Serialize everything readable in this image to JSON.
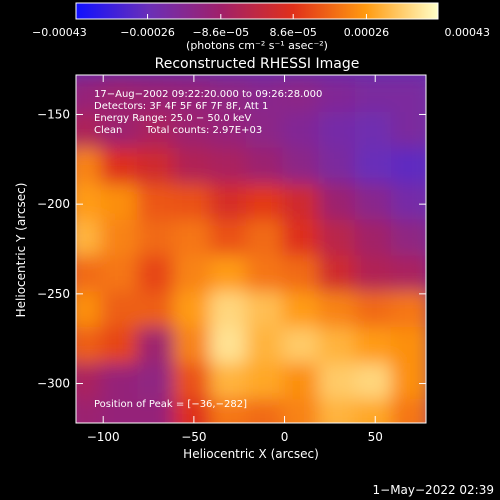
{
  "chart_data": {
    "type": "heatmap",
    "title": "Reconstructed RHESSI Image",
    "xlabel": "Heliocentric X (arcsec)",
    "ylabel": "Heliocentric Y (arcsec)",
    "xlim": [
      -115,
      78
    ],
    "ylim": [
      -322,
      -128
    ],
    "x_ticks": [
      -100,
      -50,
      0,
      50
    ],
    "x_tick_labels": [
      "−100",
      "−50",
      "0",
      "50"
    ],
    "y_ticks": [
      -150,
      -200,
      -250,
      -300
    ],
    "y_tick_labels": [
      "−150",
      "−200",
      "−250",
      "−300"
    ],
    "colorbar": {
      "range": [
        -0.00043,
        0.00043
      ],
      "tick_labels": [
        "−0.00043",
        "−0.00026",
        "−8.6e−05",
        "8.6e−05",
        "0.00026",
        "0.00043"
      ],
      "unit_label": "(photons cm⁻² s⁻¹ asec⁻²)",
      "colors": [
        "#1010ff",
        "#6a2fb8",
        "#a0206a",
        "#e0301a",
        "#ff9a10",
        "#ffffc8"
      ]
    },
    "annotations": {
      "time_range": "17−Aug−2002 09:22:20.000 to 09:26:28.000",
      "detectors": "Detectors: 3F 4F 5F 6F 7F 8F, Att 1",
      "energy": "Energy Range: 25.0 − 50.0 keV",
      "algorithm": "Clean",
      "counts": "Total counts: 2.97E+03",
      "peak": "Position of Peak = [−36,−282]"
    },
    "peak_position": [
      -36,
      -282
    ],
    "grid": false,
    "intensity_grid": {
      "x": [
        -110,
        -90,
        -70,
        -50,
        -30,
        -10,
        10,
        30,
        50,
        70
      ],
      "y": [
        -140,
        -160,
        -180,
        -200,
        -220,
        -240,
        -260,
        -280,
        -300,
        -320
      ],
      "z": [
        [
          -0.00012,
          -0.0001,
          -0.00011,
          -0.00012,
          -0.00014,
          -0.00016,
          -0.00015,
          -0.00018,
          -0.0002,
          -0.0002
        ],
        [
          -5e-05,
          -0.0001,
          -6e-05,
          -0.0001,
          -0.00012,
          -0.00015,
          -0.00018,
          -0.00022,
          -0.00024,
          -0.0002
        ],
        [
          0.00022,
          8e-05,
          4e-05,
          -4e-05,
          -6e-05,
          -0.0001,
          -0.00015,
          -0.0002,
          -0.00026,
          -0.00028
        ],
        [
          0.00026,
          0.00024,
          0.00015,
          0.00014,
          6e-05,
          0.0001,
          4e-05,
          -0.0001,
          -0.00016,
          -0.00022
        ],
        [
          0.0003,
          0.00022,
          0.00018,
          0.0002,
          0.00014,
          0.00018,
          8e-05,
          -2e-05,
          -8e-05,
          -0.00014
        ],
        [
          0.00018,
          0.0002,
          0.00012,
          0.00022,
          0.00026,
          0.0002,
          0.00018,
          4e-05,
          -4e-05,
          -6e-05
        ],
        [
          0.00024,
          0.00016,
          0.00016,
          0.00026,
          0.00036,
          0.00032,
          0.00026,
          0.00022,
          0.00018,
          0.0002
        ],
        [
          0.00016,
          0.00012,
          -0.0001,
          0.00022,
          0.00038,
          0.0003,
          0.00034,
          0.0003,
          0.00026,
          0.00024
        ],
        [
          -6e-05,
          -0.00012,
          -0.00014,
          0.00014,
          0.0003,
          0.00028,
          0.00024,
          0.00034,
          0.00036,
          0.00024
        ],
        [
          -0.0001,
          -0.00012,
          -0.00012,
          8e-05,
          0.0002,
          0.00018,
          0.00022,
          0.0003,
          0.00028,
          0.0002
        ]
      ]
    }
  },
  "footer": {
    "timestamp": "1−May−2022 02:39"
  }
}
